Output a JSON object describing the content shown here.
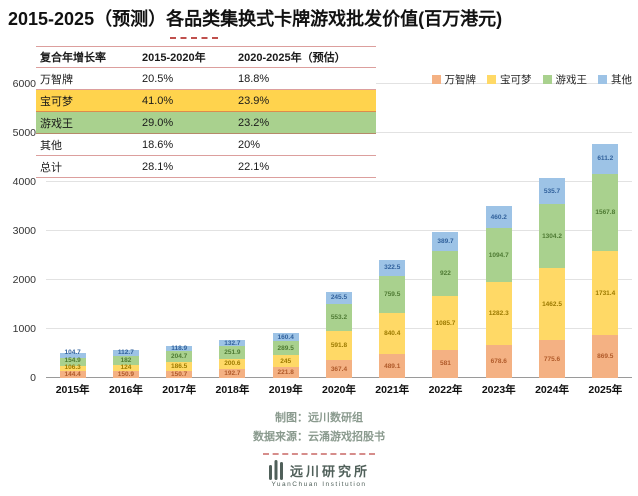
{
  "title": "2015-2025（预测）各品类集换式卡牌游戏批发价值(百万港元)",
  "table": {
    "headers": [
      "复合年增长率",
      "2015-2020年",
      "2020-2025年（预估）"
    ],
    "rows": [
      {
        "label": "万智牌",
        "v1": "20.5%",
        "v2": "18.8%",
        "highlight": "none"
      },
      {
        "label": "宝可梦",
        "v1": "41.0%",
        "v2": "23.9%",
        "highlight": "yellow"
      },
      {
        "label": "游戏王",
        "v1": "29.0%",
        "v2": "23.2%",
        "highlight": "green"
      },
      {
        "label": "其他",
        "v1": "18.6%",
        "v2": "20%",
        "highlight": "none"
      },
      {
        "label": "总计",
        "v1": "28.1%",
        "v2": "22.1%",
        "highlight": "none"
      }
    ]
  },
  "legend": [
    {
      "label": "万智牌",
      "color": "#f4b183"
    },
    {
      "label": "宝可梦",
      "color": "#ffd966"
    },
    {
      "label": "游戏王",
      "color": "#a9d18e"
    },
    {
      "label": "其他",
      "color": "#9dc3e6"
    }
  ],
  "chart_data": {
    "type": "bar",
    "stacked": true,
    "title": "2015-2025（预测）各品类集换式卡牌游戏批发价值(百万港元)",
    "xlabel": "",
    "ylabel": "",
    "ylim": [
      0,
      6000
    ],
    "yticks": [
      0,
      1000,
      2000,
      3000,
      4000,
      5000,
      6000
    ],
    "grid": true,
    "legend_position": "top-right",
    "categories": [
      "2015年",
      "2016年",
      "2017年",
      "2018年",
      "2019年",
      "2020年",
      "2021年",
      "2022年",
      "2023年",
      "2024年",
      "2025年"
    ],
    "series": [
      {
        "name": "万智牌",
        "color": "#f4b183",
        "label_color": "#b05a2a",
        "values": [
          144.4,
          150.9,
          150.7,
          192.7,
          221.8,
          367.4,
          489.1,
          581,
          678.6,
          775.6,
          869.5
        ]
      },
      {
        "name": "宝可梦",
        "color": "#ffd966",
        "label_color": "#9c7a00",
        "values": [
          106.3,
          124,
          186.5,
          200.6,
          245,
          591.8,
          840.4,
          1085.7,
          1282.3,
          1462.5,
          1731.4
        ]
      },
      {
        "name": "游戏王",
        "color": "#a9d18e",
        "label_color": "#4e7a33",
        "values": [
          154.9,
          182,
          204.7,
          251.9,
          289.5,
          553.2,
          759.5,
          922,
          1094.7,
          1304.2,
          1567.8
        ]
      },
      {
        "name": "其他",
        "color": "#9dc3e6",
        "label_color": "#31619c",
        "values": [
          104.7,
          112.7,
          118.9,
          132.7,
          160.4,
          245.5,
          322.5,
          389.7,
          460.2,
          535.7,
          611.2
        ]
      }
    ]
  },
  "footer": {
    "credit": "制图：远川数研组",
    "source": "数据来源：云涌游戏招股书"
  },
  "logo": {
    "name": "远川研究所",
    "sub": "YuanChuan Institution"
  },
  "colors": {
    "divider": "#c0504d",
    "footer_text": "#8a9a8e",
    "logo": "#50605a",
    "table_highlight_yellow": "#ffd34d",
    "table_highlight_green": "#a9d18e"
  }
}
